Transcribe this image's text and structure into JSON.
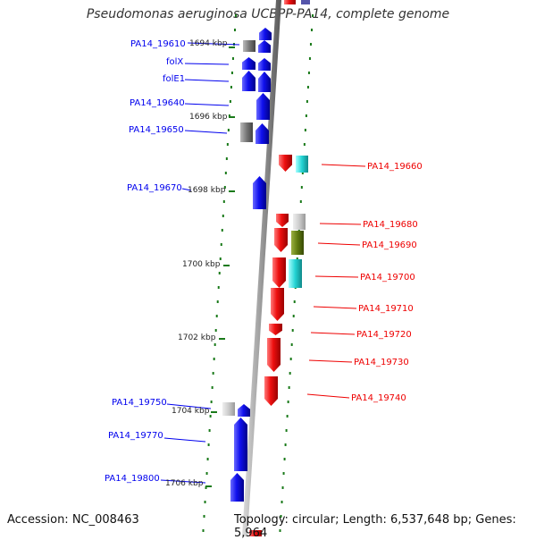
{
  "title": "Pseudomonas aeruginosa UCBPP-PA14, complete genome",
  "footer": {
    "accession": "Accession: NC_008463",
    "summary": "Topology: circular; Length: 6,537,648 bp; Genes: 5,964"
  },
  "colors": {
    "minus_strand": "#0000ee",
    "plus_strand": "#ee0000",
    "gray": "#777777",
    "cyan": "#22d3d3",
    "olive": "#5f7a10",
    "tick": "#1a7a1a"
  },
  "ticks": [
    {
      "label": "1694 kbp"
    },
    {
      "label": "1696 kbp"
    },
    {
      "label": "1698 kbp"
    },
    {
      "label": "1700 kbp"
    },
    {
      "label": "1702 kbp"
    },
    {
      "label": "1704 kbp"
    },
    {
      "label": "1706 kbp"
    }
  ],
  "left_labels": [
    "PA14_19610",
    "folX",
    "folE1",
    "PA14_19640",
    "PA14_19650",
    "PA14_19670",
    "PA14_19750",
    "PA14_19770",
    "PA14_19800"
  ],
  "right_labels": [
    "PA14_19660",
    "PA14_19680",
    "PA14_19690",
    "PA14_19700",
    "PA14_19710",
    "PA14_19720",
    "PA14_19730",
    "PA14_19740"
  ]
}
